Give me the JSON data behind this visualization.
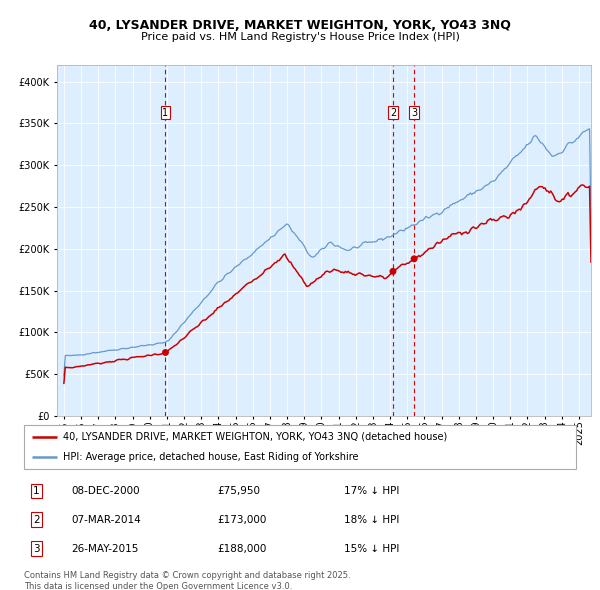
{
  "title_line1": "40, LYSANDER DRIVE, MARKET WEIGHTON, YORK, YO43 3NQ",
  "title_line2": "Price paid vs. HM Land Registry's House Price Index (HPI)",
  "legend_property": "40, LYSANDER DRIVE, MARKET WEIGHTON, YORK, YO43 3NQ (detached house)",
  "legend_hpi": "HPI: Average price, detached house, East Riding of Yorkshire",
  "footer": "Contains HM Land Registry data © Crown copyright and database right 2025.\nThis data is licensed under the Open Government Licence v3.0.",
  "sale_dates_str": [
    "08-DEC-2000",
    "07-MAR-2014",
    "26-MAY-2015"
  ],
  "sale_prices": [
    75950,
    173000,
    188000
  ],
  "sale_prices_str": [
    "£75,950",
    "£173,000",
    "£188,000"
  ],
  "sale_labels": [
    "1",
    "2",
    "3"
  ],
  "sale_years": [
    2000.917,
    2014.167,
    2015.4
  ],
  "sale_pct": [
    "17% ↓ HPI",
    "18% ↓ HPI",
    "15% ↓ HPI"
  ],
  "vline_color": "#dd0000",
  "property_color": "#cc0000",
  "hpi_color": "#6699cc",
  "bg_color": "#ddeeff",
  "grid_color": "#ffffff",
  "ylim": [
    0,
    420000
  ],
  "yticks": [
    0,
    50000,
    100000,
    150000,
    200000,
    250000,
    300000,
    350000,
    400000
  ],
  "xlim_left": 1994.6,
  "xlim_right": 2025.7
}
